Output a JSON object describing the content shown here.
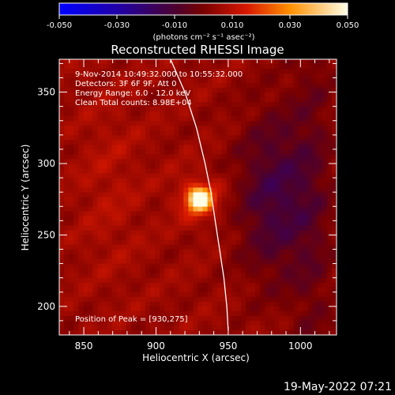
{
  "chart_data": {
    "type": "heatmap",
    "title": "Reconstructed RHESSI Image",
    "xlabel": "Heliocentric X (arcsec)",
    "ylabel": "Heliocentric Y (arcsec)",
    "xlim": [
      833,
      1025
    ],
    "ylim": [
      180,
      373
    ],
    "xticks": [
      850,
      900,
      950,
      1000
    ],
    "yticks": [
      200,
      250,
      300,
      350
    ],
    "colorbar": {
      "ticks": [
        "-0.050",
        "-0.030",
        "-0.010",
        "0.010",
        "0.030",
        "0.050"
      ],
      "range": [
        -0.05,
        0.05
      ],
      "unit_label": "(photons cm⁻² s⁻¹ asec⁻²)"
    },
    "annotations": [
      "9-Nov-2014 10:49:32.000 to 10:55:32.000",
      "Detectors: 3F 6F 9F, Att 0",
      "Energy Range: 6.0 - 12.0 keV",
      "Clean    Total counts: 8.98E+04"
    ],
    "peak": {
      "label": "Position of Peak = [930,275]",
      "x": 930,
      "y": 275
    },
    "limb": [
      [
        910,
        373
      ],
      [
        920,
        350
      ],
      [
        928,
        325
      ],
      [
        934,
        300
      ],
      [
        938,
        280
      ],
      [
        941,
        260
      ],
      [
        944,
        240
      ],
      [
        947,
        220
      ],
      [
        949,
        200
      ],
      [
        950,
        183
      ]
    ],
    "timestamp": "19-May-2022 07:21"
  }
}
